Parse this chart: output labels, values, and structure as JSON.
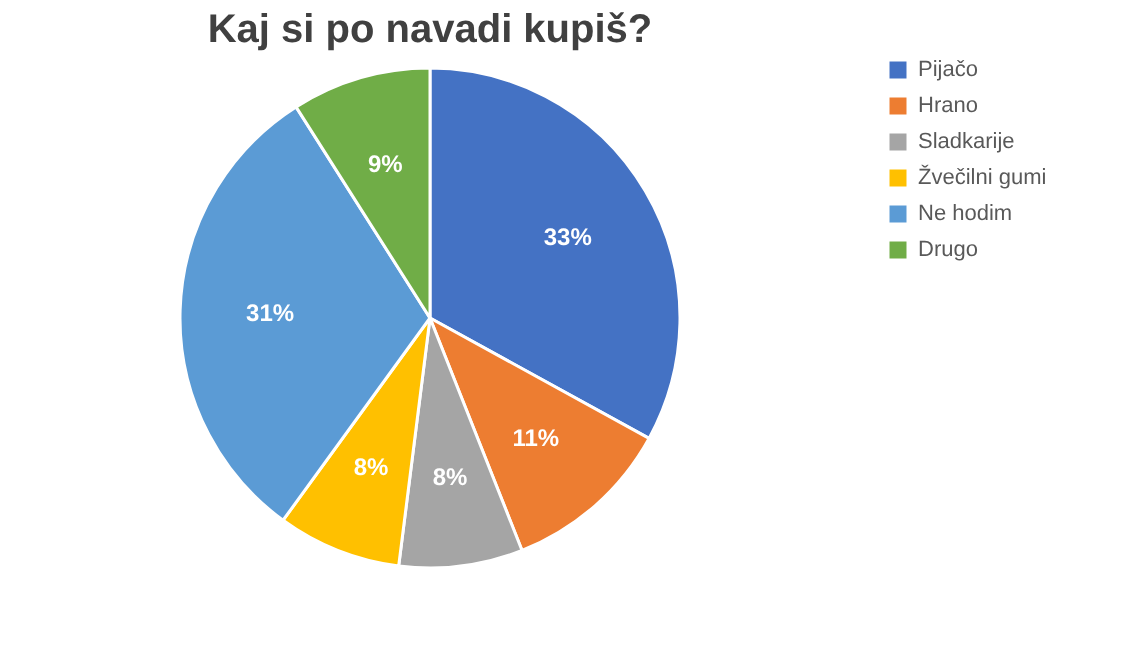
{
  "chart_data": {
    "type": "pie",
    "title": "Kaj si po navadi kupiš?",
    "categories": [
      "Pijačo",
      "Hrano",
      "Sladkarije",
      "Žvečilni gumi",
      "Ne hodim",
      "Drugo"
    ],
    "values": [
      33,
      11,
      8,
      8,
      31,
      9
    ],
    "colors": [
      "#4472c4",
      "#ed7d31",
      "#a5a5a5",
      "#ffc000",
      "#5b9bd5",
      "#70ad47"
    ],
    "value_labels": [
      "33%",
      "11%",
      "8%",
      "8%",
      "31%",
      "9%"
    ],
    "legend": "right"
  }
}
